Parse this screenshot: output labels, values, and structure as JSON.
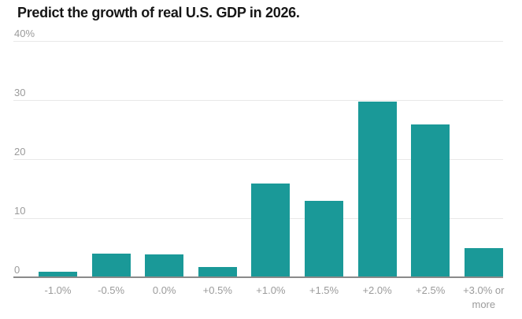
{
  "chart_data": {
    "type": "bar",
    "title": "Predict the growth of real U.S. GDP in 2026.",
    "categories": [
      "-1.0%",
      "-0.5%",
      "0.0%",
      "+0.5%",
      "+1.0%",
      "+1.5%",
      "+2.0%",
      "+2.5%",
      "+3.0% or more"
    ],
    "values": [
      1.0,
      4.0,
      3.9,
      1.8,
      15.9,
      13.0,
      29.8,
      25.9,
      4.9
    ],
    "xlabel": "",
    "ylabel": "",
    "ylim": [
      0,
      40
    ],
    "yticks": [
      0,
      10,
      20,
      30,
      40
    ],
    "ytick_labels": [
      "0",
      "10",
      "20",
      "30",
      "40%"
    ],
    "grid": true,
    "legend": false,
    "bar_color": "#1a9998"
  },
  "colors": {
    "bar": "#1a9998",
    "grid": "#e8e8e8",
    "baseline": "#8a8a8a",
    "axis_text": "#9b9b9b",
    "title": "#161616",
    "background": "#ffffff"
  }
}
